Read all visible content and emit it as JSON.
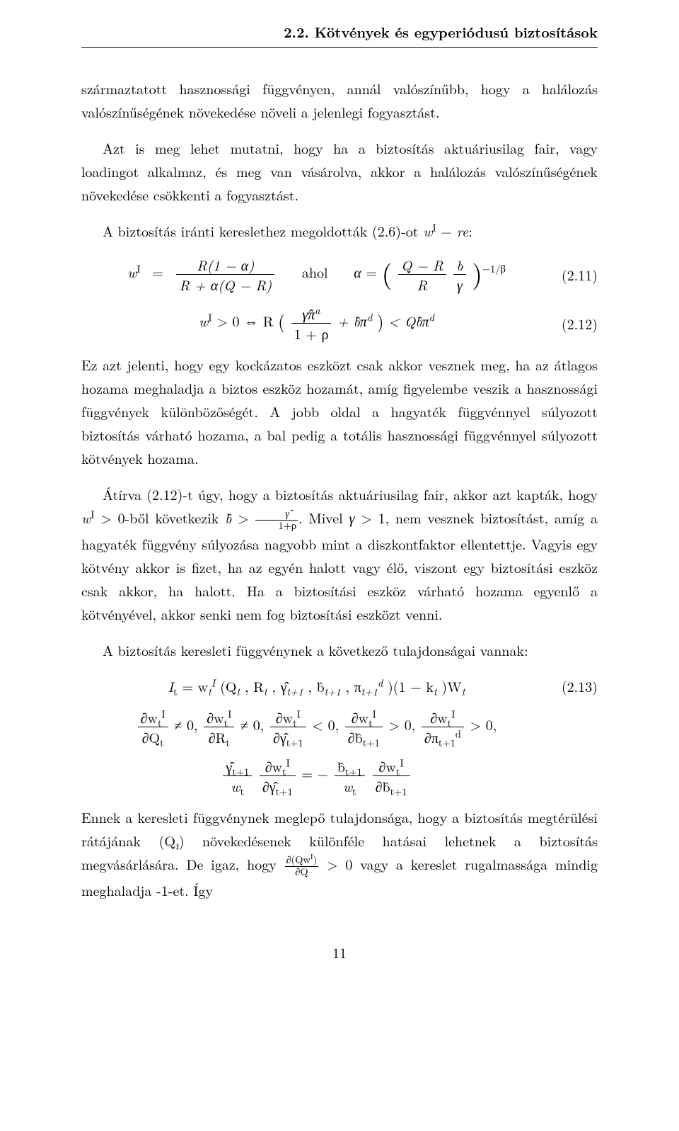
{
  "running_head": "2.2. Kötvények és egyperiódusú biztosítások",
  "para1": "származtatott hasznossági függvényen, annál valószínűbb, hogy a halálozás valószínűségének növekedése növeli a jelenlegi fogyasztást.",
  "para2": "Azt is meg lehet mutatni, hogy ha a biztosítás aktuáriusilag fair, vagy loadingot alkalmaz, és meg van vásárolva, akkor a halálozás valószínűségének növekedése csökkenti a fogyasztást.",
  "para3_a": "A biztosítás iránti kereslethez megoldották (2.6)-ot ",
  "para3_b": ":",
  "eq211": {
    "lhs_var": "w",
    "lhs_sup": "I",
    "num": "R(1 − α)",
    "den": "R + α(Q − R)",
    "ahol": "ahol",
    "alpha": "α",
    "inner_num_a": "Q − R",
    "inner_den_a": "R",
    "inner_num_b": "b",
    "inner_den_b": "γ",
    "exp": "−1/β",
    "tag": "(2.11)"
  },
  "eq212": {
    "lhs": "w",
    "lhs_sup": "I",
    "gt0": "> 0 ⇔ R",
    "frac_num": "γ̂π",
    "frac_num_sup": "a",
    "frac_den": "1 + ρ",
    "mid": " + b̂π",
    "mid_sup": "d",
    "lt": " < Qb̂π",
    "lt_sup": "d",
    "tag": "(2.12)"
  },
  "para4": "Ez azt jelenti, hogy egy kockázatos eszközt csak akkor vesznek meg, ha az átlagos hozama meghaladja a biztos eszköz hozamát, amíg figyelembe veszik a hasznossági függvények különbözőségét. A jobb oldal a hagyaték függvénnyel súlyozott biztosítás várható hozama, a bal pedig a totális hasznossági függvénnyel súlyozott kötvények hozama.",
  "para5_a": "Átírva (2.12)-t úgy, hogy a biztosítás aktuáriusilag fair, akkor azt kapták, hogy ",
  "para5_b": "-ből következik ",
  "para5_c": ". Mivel ",
  "para5_d": ", nem vesznek biztosítást, amíg a hagyaték függvény súlyozása nagyobb mint a diszkontfaktor ellentettje. Vagyis egy kötvény akkor is fizet, ha az egyén halott vagy élő, viszont egy biztosítási eszköz csak akkor, ha halott. Ha a biztosítási eszköz várható hozama egyenlő a kötvényével, akkor senki nem fog biztosítási eszközt venni.",
  "para6": "A biztosítás keresleti függvénynek a következő tulajdonságai vannak:",
  "eq213": {
    "body_a": "I",
    "body_a_sub": "t",
    "body_b": " = w",
    "body_c": "(Q",
    "body_d": ", R",
    "body_e": ", γ̂",
    "body_f": ", b̂",
    "body_g": ", π",
    "body_h": ")(1 − k",
    "body_i": ")W",
    "tag": "(2.13)"
  },
  "partials": {
    "top": "∂w",
    "sup": "I",
    "sub": "t",
    "dQ": "∂Q",
    "dR": "∂R",
    "dG": "∂γ̂",
    "dB": "∂b̂",
    "dP": "∂π",
    "ne0": " ≠ 0, ",
    "lt0": " < 0, ",
    "gt0": " > 0, ",
    "gt0_end": " > 0,",
    "sub_t1": "t+1",
    "sub_dt1": "d",
    "gamma_num": "γ̂",
    "b_num": "b̂",
    "w_den": "w",
    "eq": " = −"
  },
  "para7_a": "Ennek a keresleti függvénynek meglepő tulajdonsága, hogy a biztosítás megtérülési rátájának (Q",
  "para7_b": ") növekedésenek különféle hatásai lehetnek a biztosítás megvásárlására. De igaz, hogy ",
  "para7_c": " > 0 vagy a kereslet rugalmassága mindig meghaladja -1-et. Így",
  "page_number": "11"
}
